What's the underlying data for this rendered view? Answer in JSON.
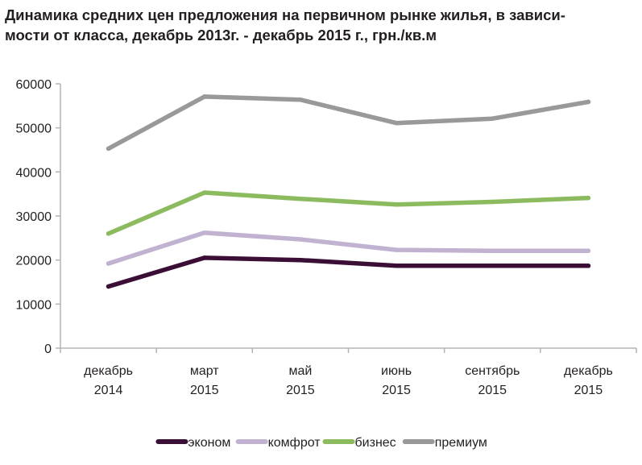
{
  "chart_data": {
    "type": "line",
    "title_lines": [
      "Динамика средних цен предложения на первичном рынке жилья, в зависи-",
      "мости от класса, декабрь 2013г. - декабрь 2015 г., грн./кв.м"
    ],
    "categories": [
      [
        "декабрь",
        "2014"
      ],
      [
        "март",
        "2015"
      ],
      [
        "май",
        "2015"
      ],
      [
        "июнь",
        "2015"
      ],
      [
        "сентябрь",
        "2015"
      ],
      [
        "декабрь",
        "2015"
      ]
    ],
    "y_ticks": [
      "0",
      "10000",
      "20000",
      "30000",
      "40000",
      "50000",
      "60000"
    ],
    "ylim": [
      0,
      60000
    ],
    "grid": false,
    "legend_position": "bottom",
    "series": [
      {
        "name": "эконом",
        "color": "#3b0f35",
        "values": [
          14000,
          20500,
          20000,
          18700,
          18700,
          18700
        ]
      },
      {
        "name": "комфрот",
        "color": "#c0b2d0",
        "values": [
          19200,
          26200,
          24700,
          22300,
          22100,
          22100
        ]
      },
      {
        "name": "бизнес",
        "color": "#8cbb5f",
        "values": [
          26000,
          35300,
          33900,
          32600,
          33200,
          34100
        ]
      },
      {
        "name": "премиум",
        "color": "#999999",
        "values": [
          45300,
          57100,
          56400,
          51100,
          52100,
          55900
        ]
      }
    ]
  }
}
